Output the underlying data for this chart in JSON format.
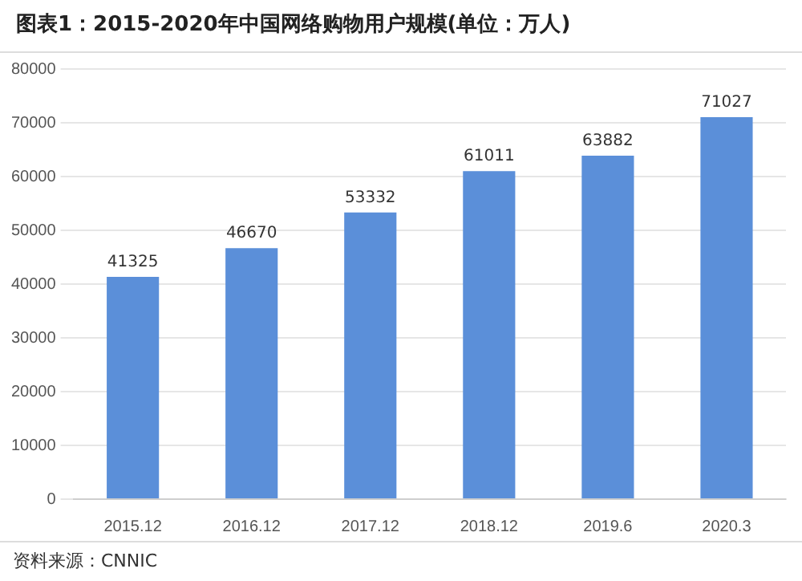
{
  "chart_data": {
    "type": "bar",
    "title": "图表1：2015-2020年中国网络购物用户规模(单位：万人)",
    "categories": [
      "2015.12",
      "2016.12",
      "2017.12",
      "2018.12",
      "2019.6",
      "2020.3"
    ],
    "values": [
      41325,
      46670,
      53332,
      61011,
      63882,
      71027
    ],
    "color": "#5b8fd9",
    "ylim": [
      0,
      80000
    ],
    "yticks": [
      0,
      10000,
      20000,
      30000,
      40000,
      50000,
      60000,
      70000,
      80000
    ],
    "grid": "y",
    "data_labels": true,
    "annotations": [
      "资料来源：CNNIC"
    ]
  }
}
